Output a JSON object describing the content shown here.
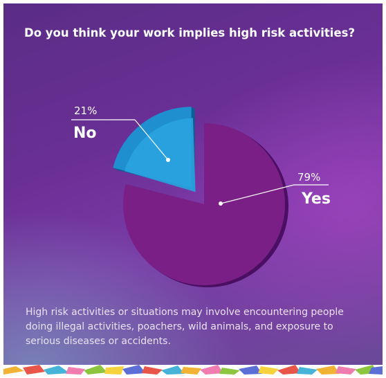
{
  "chart_data": {
    "type": "pie",
    "title": "Do you think your work implies high risk activities?",
    "slices": [
      {
        "label": "No",
        "percent_label": "21%",
        "value": 21,
        "color": "#1f8fcf",
        "side_color": "#0e5f92"
      },
      {
        "label": "Yes",
        "percent_label": "79%",
        "value": 79,
        "color": "#7a1f86",
        "side_color": "#4b1063"
      }
    ]
  },
  "footnote": "High risk activities or situations may involve encountering people doing illegal activities, poachers, wild animals, and exposure to serious diseases or accidents."
}
